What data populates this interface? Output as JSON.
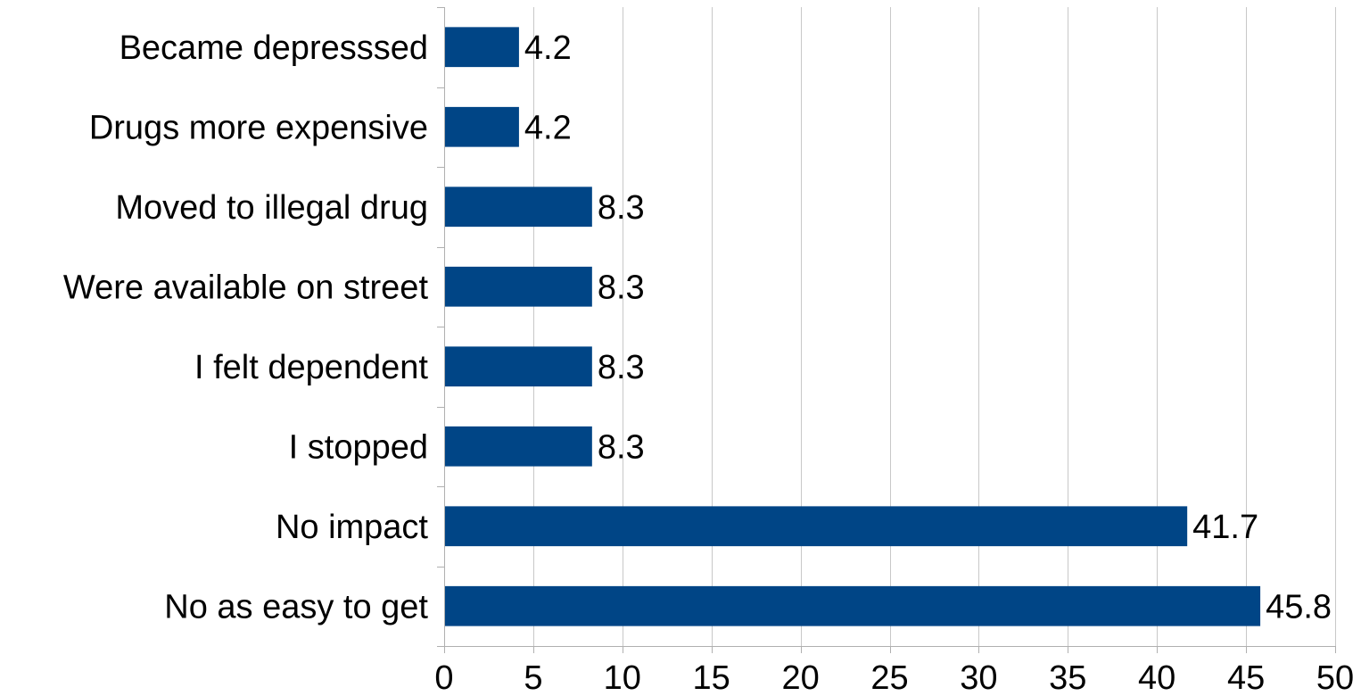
{
  "chart_data": {
    "type": "bar",
    "orientation": "horizontal",
    "categories": [
      "Became depresssed",
      "Drugs more expensive",
      "Moved to illegal drug",
      "Were available on street",
      "I felt dependent",
      "I stopped",
      "No impact",
      "No as easy to get"
    ],
    "values": [
      4.2,
      4.2,
      8.3,
      8.3,
      8.3,
      8.3,
      41.7,
      45.8
    ],
    "data_labels": [
      "4.2",
      "4.2",
      "8.3",
      "8.3",
      "8.3",
      "8.3",
      "41.7",
      "45.8"
    ],
    "xlim": [
      0,
      50
    ],
    "xticks": [
      0,
      5,
      10,
      15,
      20,
      25,
      30,
      35,
      40,
      45,
      50
    ],
    "xtick_labels": [
      "0",
      "5",
      "10",
      "15",
      "20",
      "25",
      "30",
      "35",
      "40",
      "45",
      "50"
    ],
    "title": "",
    "xlabel": "",
    "ylabel": "",
    "grid": "vertical",
    "legend": "none",
    "bar_color": "#004586"
  }
}
